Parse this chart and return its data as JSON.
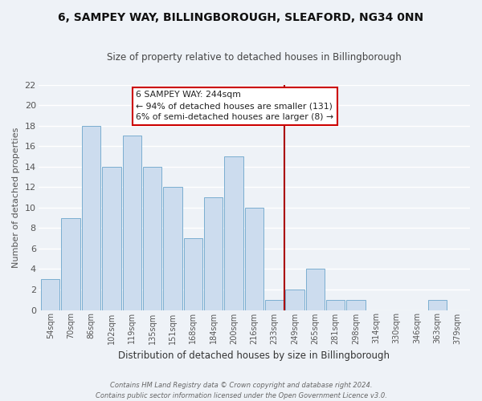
{
  "title": "6, SAMPEY WAY, BILLINGBOROUGH, SLEAFORD, NG34 0NN",
  "subtitle": "Size of property relative to detached houses in Billingborough",
  "xlabel": "Distribution of detached houses by size in Billingborough",
  "ylabel": "Number of detached properties",
  "bar_labels": [
    "54sqm",
    "70sqm",
    "86sqm",
    "102sqm",
    "119sqm",
    "135sqm",
    "151sqm",
    "168sqm",
    "184sqm",
    "200sqm",
    "216sqm",
    "233sqm",
    "249sqm",
    "265sqm",
    "281sqm",
    "298sqm",
    "314sqm",
    "330sqm",
    "346sqm",
    "363sqm",
    "379sqm"
  ],
  "bar_heights": [
    3,
    9,
    18,
    14,
    17,
    14,
    12,
    7,
    11,
    15,
    10,
    1,
    2,
    4,
    1,
    1,
    0,
    0,
    0,
    1,
    0
  ],
  "bar_color": "#ccdcee",
  "bar_edge_color": "#7aaed0",
  "vline_color": "#aa0000",
  "annotation_line1": "6 SAMPEY WAY: 244sqm",
  "annotation_line2": "← 94% of detached houses are smaller (131)",
  "annotation_line3": "6% of semi-detached houses are larger (8) →",
  "ylim": [
    0,
    22
  ],
  "yticks": [
    0,
    2,
    4,
    6,
    8,
    10,
    12,
    14,
    16,
    18,
    20,
    22
  ],
  "footer_line1": "Contains HM Land Registry data © Crown copyright and database right 2024.",
  "footer_line2": "Contains public sector information licensed under the Open Government Licence v3.0.",
  "background_color": "#eef2f7",
  "grid_color": "#ffffff"
}
